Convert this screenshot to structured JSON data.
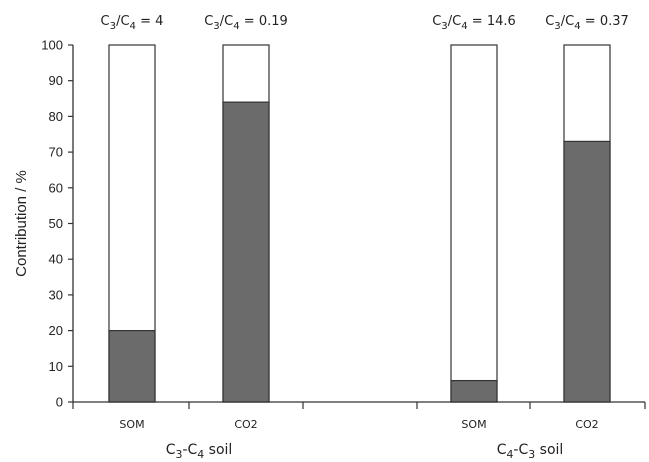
{
  "chart_data": {
    "type": "bar",
    "stacked": true,
    "ylabel": "Contribution / %",
    "ylim": [
      0,
      100
    ],
    "yticks": [
      0,
      10,
      20,
      30,
      40,
      50,
      60,
      70,
      80,
      90,
      100
    ],
    "grid": false,
    "groups": [
      {
        "label_parts": [
          {
            "t": "C"
          },
          {
            "t": "3",
            "sub": true
          },
          {
            "t": "-C"
          },
          {
            "t": "4",
            "sub": true
          },
          {
            "t": " soil"
          }
        ],
        "bars": [
          {
            "category": "SOM",
            "value": 20,
            "annotation": [
              {
                "t": "C"
              },
              {
                "t": "3",
                "sub": true
              },
              {
                "t": "/C"
              },
              {
                "t": "4",
                "sub": true
              },
              {
                "t": " = 4"
              }
            ]
          },
          {
            "category": "CO2",
            "value": 84,
            "annotation": [
              {
                "t": "C"
              },
              {
                "t": "3",
                "sub": true
              },
              {
                "t": "/C"
              },
              {
                "t": "4",
                "sub": true
              },
              {
                "t": " = 0.19"
              }
            ]
          }
        ]
      },
      {
        "label_parts": [
          {
            "t": "C"
          },
          {
            "t": "4",
            "sub": true
          },
          {
            "t": "-C"
          },
          {
            "t": "3",
            "sub": true
          },
          {
            "t": " soil"
          }
        ],
        "bars": [
          {
            "category": "SOM",
            "value": 6,
            "annotation": [
              {
                "t": "C"
              },
              {
                "t": "3",
                "sub": true
              },
              {
                "t": "/C"
              },
              {
                "t": "4",
                "sub": true
              },
              {
                "t": " = 14.6"
              }
            ]
          },
          {
            "category": "CO2",
            "value": 73,
            "annotation": [
              {
                "t": "C"
              },
              {
                "t": "3",
                "sub": true
              },
              {
                "t": "/C"
              },
              {
                "t": "4",
                "sub": true
              },
              {
                "t": " = 0.37"
              }
            ]
          }
        ]
      }
    ],
    "colors": {
      "filled": "#6b6b6b",
      "empty": "#ffffff",
      "stroke": "#333333"
    }
  }
}
